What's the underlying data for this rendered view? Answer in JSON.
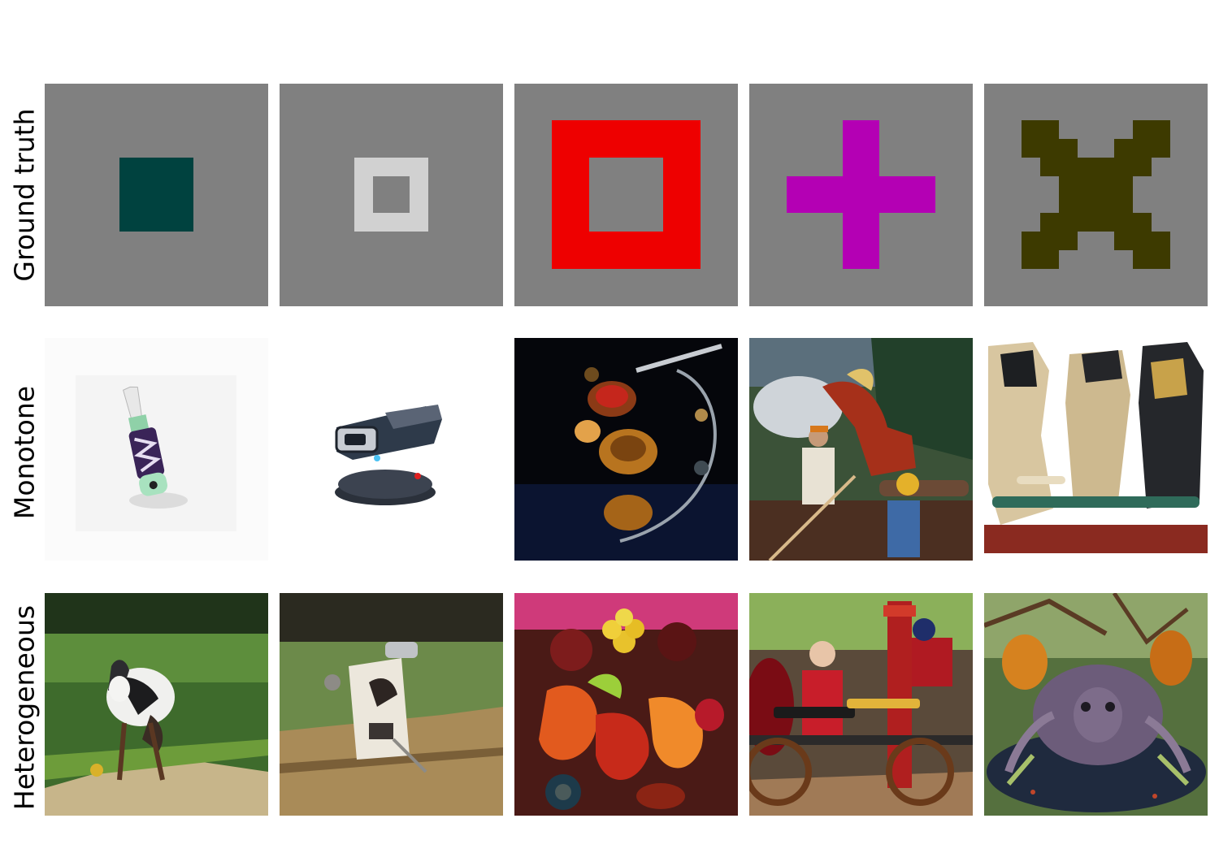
{
  "rows": {
    "ground_truth": {
      "label": "Ground truth",
      "tiles": [
        {
          "shape": "solid-square",
          "color": "#00423f"
        },
        {
          "shape": "hollow-square-small",
          "color": "#d1d1d1"
        },
        {
          "shape": "hollow-square-large",
          "color": "#ee0000"
        },
        {
          "shape": "plus",
          "color": "#b400b4"
        },
        {
          "shape": "x-cross",
          "color": "#3d3a00"
        }
      ]
    },
    "monotone": {
      "label": "Monotone",
      "tiles": [
        {
          "subject": "pen-drive-on-white"
        },
        {
          "subject": "gadget-device-on-white"
        },
        {
          "subject": "metal-bells-on-black"
        },
        {
          "subject": "horse-crowd-outdoor"
        },
        {
          "subject": "seats-on-white"
        }
      ]
    },
    "heterogeneous": {
      "label": "Heterogeneous",
      "tiles": [
        {
          "subject": "toy-animal-on-grass"
        },
        {
          "subject": "device-on-wood"
        },
        {
          "subject": "fruit-pile"
        },
        {
          "subject": "people-with-machinery"
        },
        {
          "subject": "creature-in-forest"
        }
      ]
    }
  }
}
